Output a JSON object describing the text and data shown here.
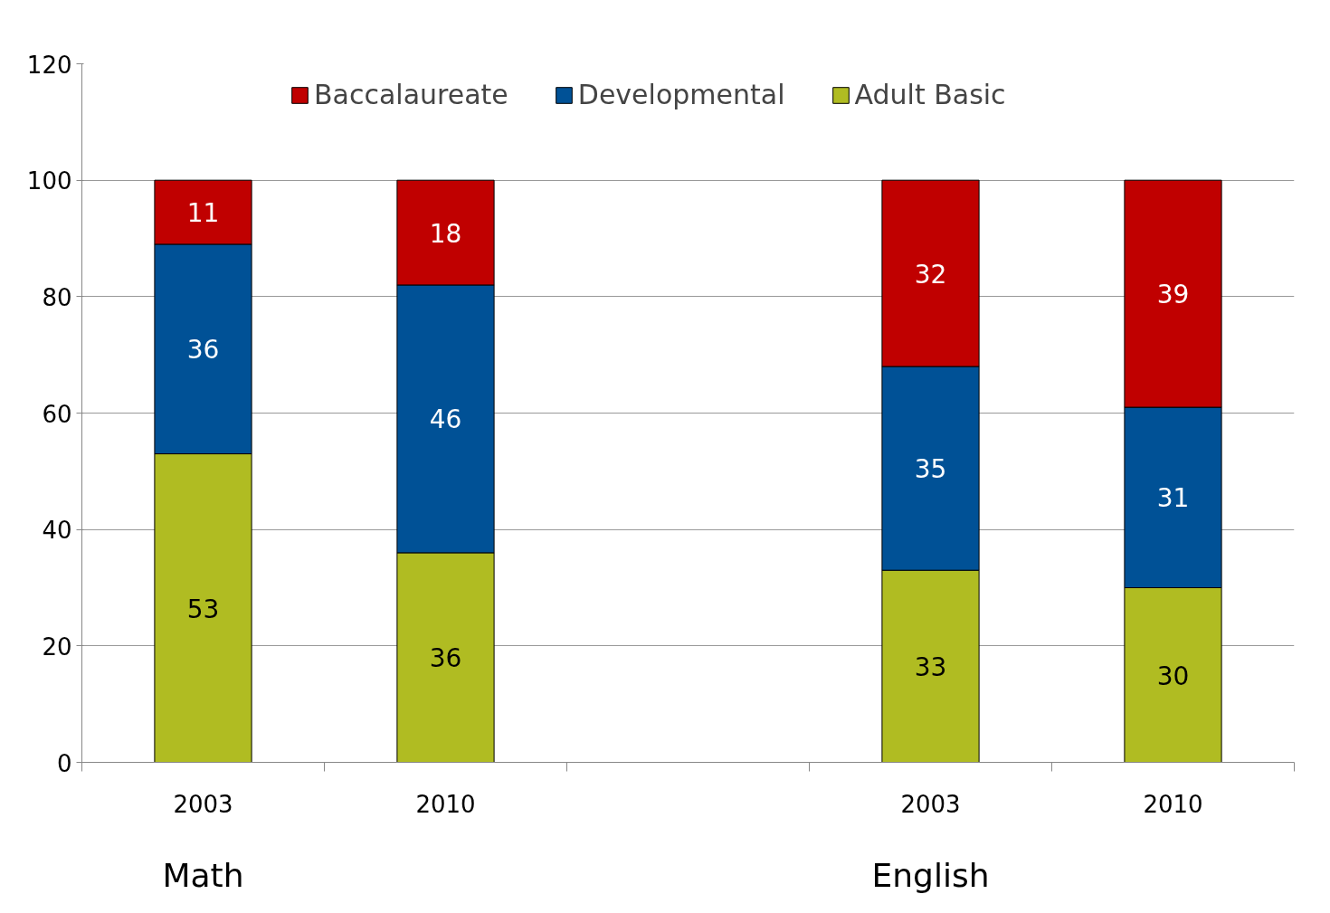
{
  "chart_data": {
    "type": "bar",
    "stacked": true,
    "categories": [
      "2003",
      "2010",
      null,
      "2003",
      "2010"
    ],
    "series": [
      {
        "name": "Adult Basic",
        "color": "#b0bc22",
        "values": [
          53,
          36,
          null,
          33,
          30
        ]
      },
      {
        "name": "Developmental",
        "color": "#005196",
        "values": [
          36,
          46,
          null,
          35,
          31
        ]
      },
      {
        "name": "Baccalaureate",
        "color": "#c00000",
        "values": [
          11,
          18,
          null,
          32,
          39
        ]
      }
    ],
    "ylim": [
      0,
      120
    ],
    "yticks": [
      0,
      20,
      40,
      60,
      80,
      100,
      120
    ],
    "grid": "y",
    "legend": "top",
    "data_labels": true,
    "annotations": [
      "Math",
      "English"
    ]
  }
}
